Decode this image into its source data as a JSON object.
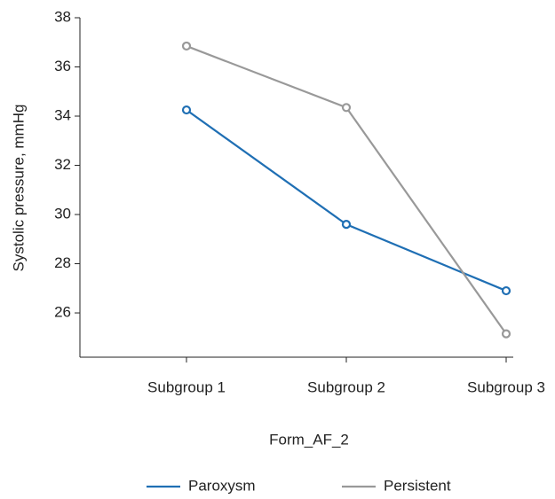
{
  "chart_data": {
    "type": "line",
    "x_label": "Form_AF_2",
    "y_label": "Systolic pressure, mmHg",
    "categories": [
      "Subgroup 1",
      "Subgroup 2",
      "Subgroup 3"
    ],
    "series": [
      {
        "name": "Paroxysm",
        "color": "#1f6fb4",
        "values": [
          34.25,
          29.6,
          26.9
        ]
      },
      {
        "name": "Persistent",
        "color": "#999999",
        "values": [
          36.85,
          34.35,
          25.15
        ]
      }
    ],
    "ylim": [
      24.2,
      38
    ],
    "yticks": [
      26,
      28,
      30,
      32,
      34,
      36,
      38
    ],
    "markers": true,
    "legend": "bottom"
  }
}
